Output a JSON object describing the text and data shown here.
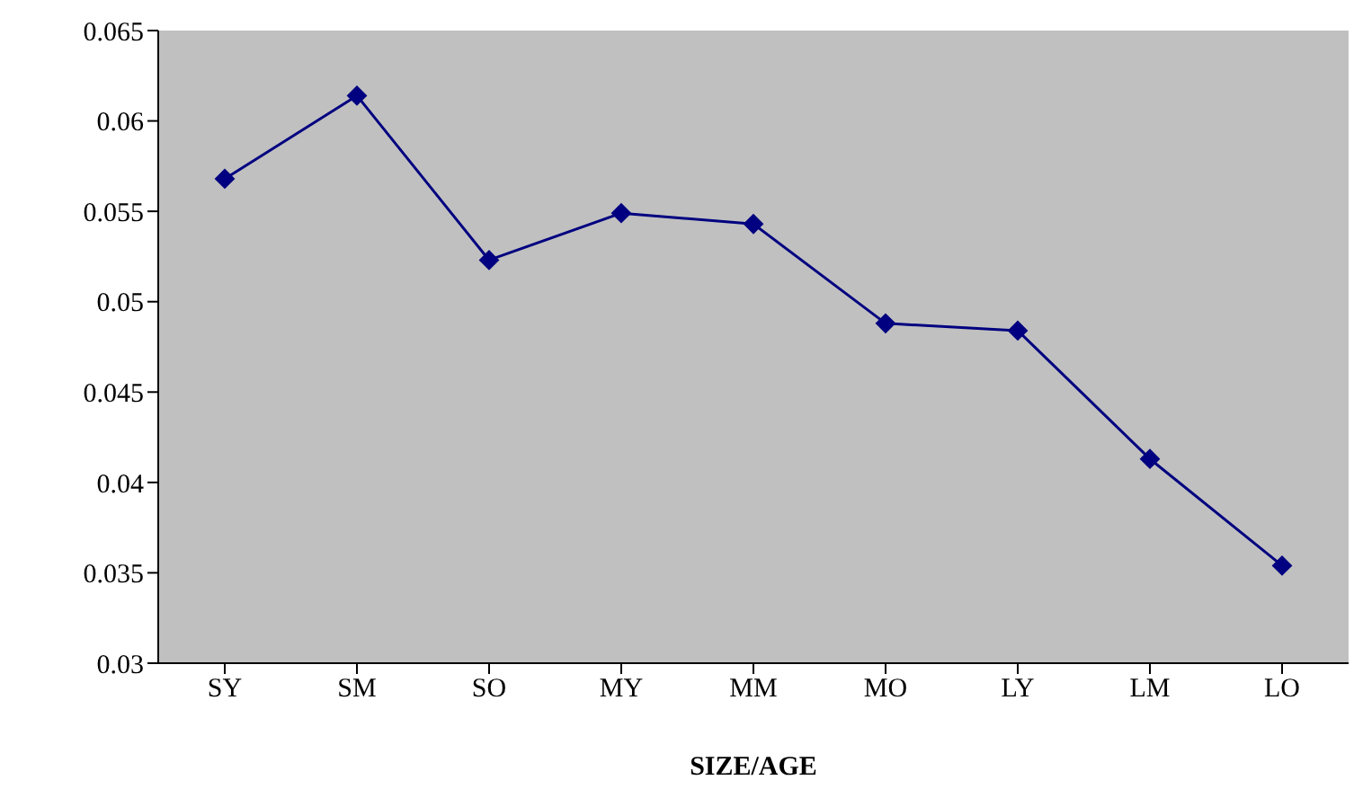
{
  "chart_data": {
    "type": "line",
    "xlabel": "SIZE/AGE",
    "categories": [
      "SY",
      "SM",
      "SO",
      "MY",
      "MM",
      "MO",
      "LY",
      "LM",
      "LO"
    ],
    "series": [
      {
        "color": "#000080",
        "values": [
          0.0568,
          0.0614,
          0.0523,
          0.0549,
          0.0543,
          0.0488,
          0.0484,
          0.0413,
          0.0354
        ]
      }
    ],
    "ylim": [
      0.03,
      0.065
    ],
    "yticks": [
      0.03,
      0.035,
      0.04,
      0.045,
      0.05,
      0.055,
      0.06,
      0.065
    ],
    "marker": "diamond",
    "line_style": "solid",
    "grid": false,
    "legend": false
  }
}
